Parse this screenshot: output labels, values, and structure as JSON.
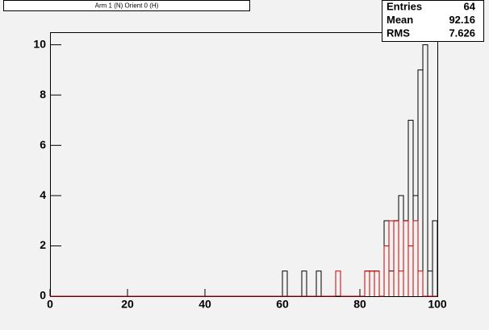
{
  "chart_data": {
    "type": "histogram",
    "title": "Arm 1 (N) Orient 0 (H)",
    "bins": [
      0,
      1.25,
      2.5,
      3.75,
      5,
      6.25,
      7.5,
      8.75,
      10,
      11.25,
      12.5,
      13.75,
      15,
      16.25,
      17.5,
      18.75,
      20,
      21.25,
      22.5,
      23.75,
      25,
      26.25,
      27.5,
      28.75,
      30,
      31.25,
      32.5,
      33.75,
      35,
      36.25,
      37.5,
      38.75,
      40,
      41.25,
      42.5,
      43.75,
      45,
      46.25,
      47.5,
      48.75,
      50,
      51.25,
      52.5,
      53.75,
      55,
      56.25,
      57.5,
      58.75,
      60,
      61.25,
      62.5,
      63.75,
      65,
      66.25,
      67.5,
      68.75,
      70,
      71.25,
      72.5,
      73.75,
      75,
      76.25,
      77.5,
      78.75,
      80,
      81.25,
      82.5,
      83.75,
      85,
      86.25,
      87.5,
      88.75,
      90,
      91.25,
      92.5,
      93.75,
      95,
      96.25,
      97.5,
      98.75,
      100
    ],
    "series": [
      {
        "color": "#000000",
        "values": [
          0,
          0,
          0,
          0,
          0,
          0,
          0,
          0,
          0,
          0,
          0,
          0,
          0,
          0,
          0,
          0,
          0,
          0,
          0,
          0,
          0,
          0,
          0,
          0,
          0,
          0,
          0,
          0,
          0,
          0,
          0,
          0,
          0,
          0,
          0,
          0,
          0,
          0,
          0,
          0,
          0,
          0,
          0,
          0,
          0,
          0,
          0,
          0,
          1,
          0,
          0,
          0,
          1,
          0,
          0,
          1,
          0,
          0,
          0,
          0,
          0,
          0,
          0,
          0,
          0,
          1,
          1,
          1,
          0,
          3,
          1,
          3,
          4,
          3,
          7,
          4,
          9,
          10,
          1,
          3
        ]
      },
      {
        "color": "#cc0000",
        "values": [
          0,
          0,
          0,
          0,
          0,
          0,
          0,
          0,
          0,
          0,
          0,
          0,
          0,
          0,
          0,
          0,
          0,
          0,
          0,
          0,
          0,
          0,
          0,
          0,
          0,
          0,
          0,
          0,
          0,
          0,
          0,
          0,
          0,
          0,
          0,
          0,
          0,
          0,
          0,
          0,
          0,
          0,
          0,
          0,
          0,
          0,
          0,
          0,
          0,
          0,
          0,
          0,
          0,
          0,
          0,
          0,
          0,
          0,
          0,
          1,
          0,
          0,
          0,
          0,
          0,
          1,
          1,
          1,
          0,
          2,
          3,
          3,
          1,
          3,
          2,
          3,
          1,
          0,
          0,
          0
        ]
      }
    ],
    "xlim": [
      0,
      100
    ],
    "xticks": [
      0,
      20,
      40,
      60,
      80,
      100
    ],
    "ylim": [
      0,
      10.5
    ],
    "yticks": [
      0,
      2,
      4,
      6,
      8,
      10
    ],
    "stats": [
      {
        "label": "Entries",
        "value": 64
      },
      {
        "label": "Mean",
        "value": 92.16
      },
      {
        "label": "RMS",
        "value": 7.626
      }
    ]
  }
}
